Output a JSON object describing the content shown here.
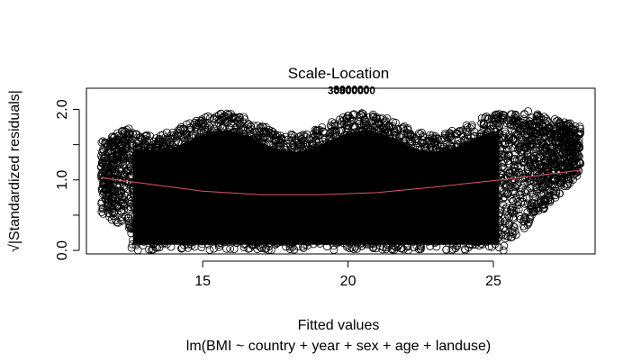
{
  "chart_data": {
    "type": "scatter",
    "title": "Scale-Location",
    "xlabel": "Fitted values",
    "ylabel": "√|Standardized residuals|",
    "ylabel_prefix": "√",
    "ylabel_main": "|Standardized residuals|",
    "subtitle": "lm(BMI ~ country + year + sex + age + landuse)",
    "xlim": [
      11.0,
      28.5
    ],
    "ylim": [
      -0.05,
      2.3
    ],
    "x_ticks": [
      15,
      20,
      25
    ],
    "x_tick_labels": [
      "15",
      "20",
      "25"
    ],
    "y_ticks": [
      0.0,
      0.5,
      1.0,
      1.5,
      2.0
    ],
    "y_tick_labels": [
      "0.0",
      "",
      "1.0",
      "",
      "2.0"
    ],
    "grid": false,
    "legend": "none",
    "point_style": "open-circle",
    "outlier_labels": [
      "300000",
      "300000",
      "300000"
    ],
    "smooth_line": {
      "color": "#df536b",
      "x": [
        11.5,
        13,
        15,
        17,
        19,
        21,
        23,
        25,
        26.5,
        28
      ],
      "y": [
        1.03,
        0.95,
        0.84,
        0.79,
        0.79,
        0.82,
        0.9,
        0.99,
        1.06,
        1.14
      ]
    },
    "point_cloud": {
      "x_range": [
        11.5,
        28.0
      ],
      "y_range": [
        0.0,
        2.2
      ],
      "note_density": "very dense"
    }
  }
}
